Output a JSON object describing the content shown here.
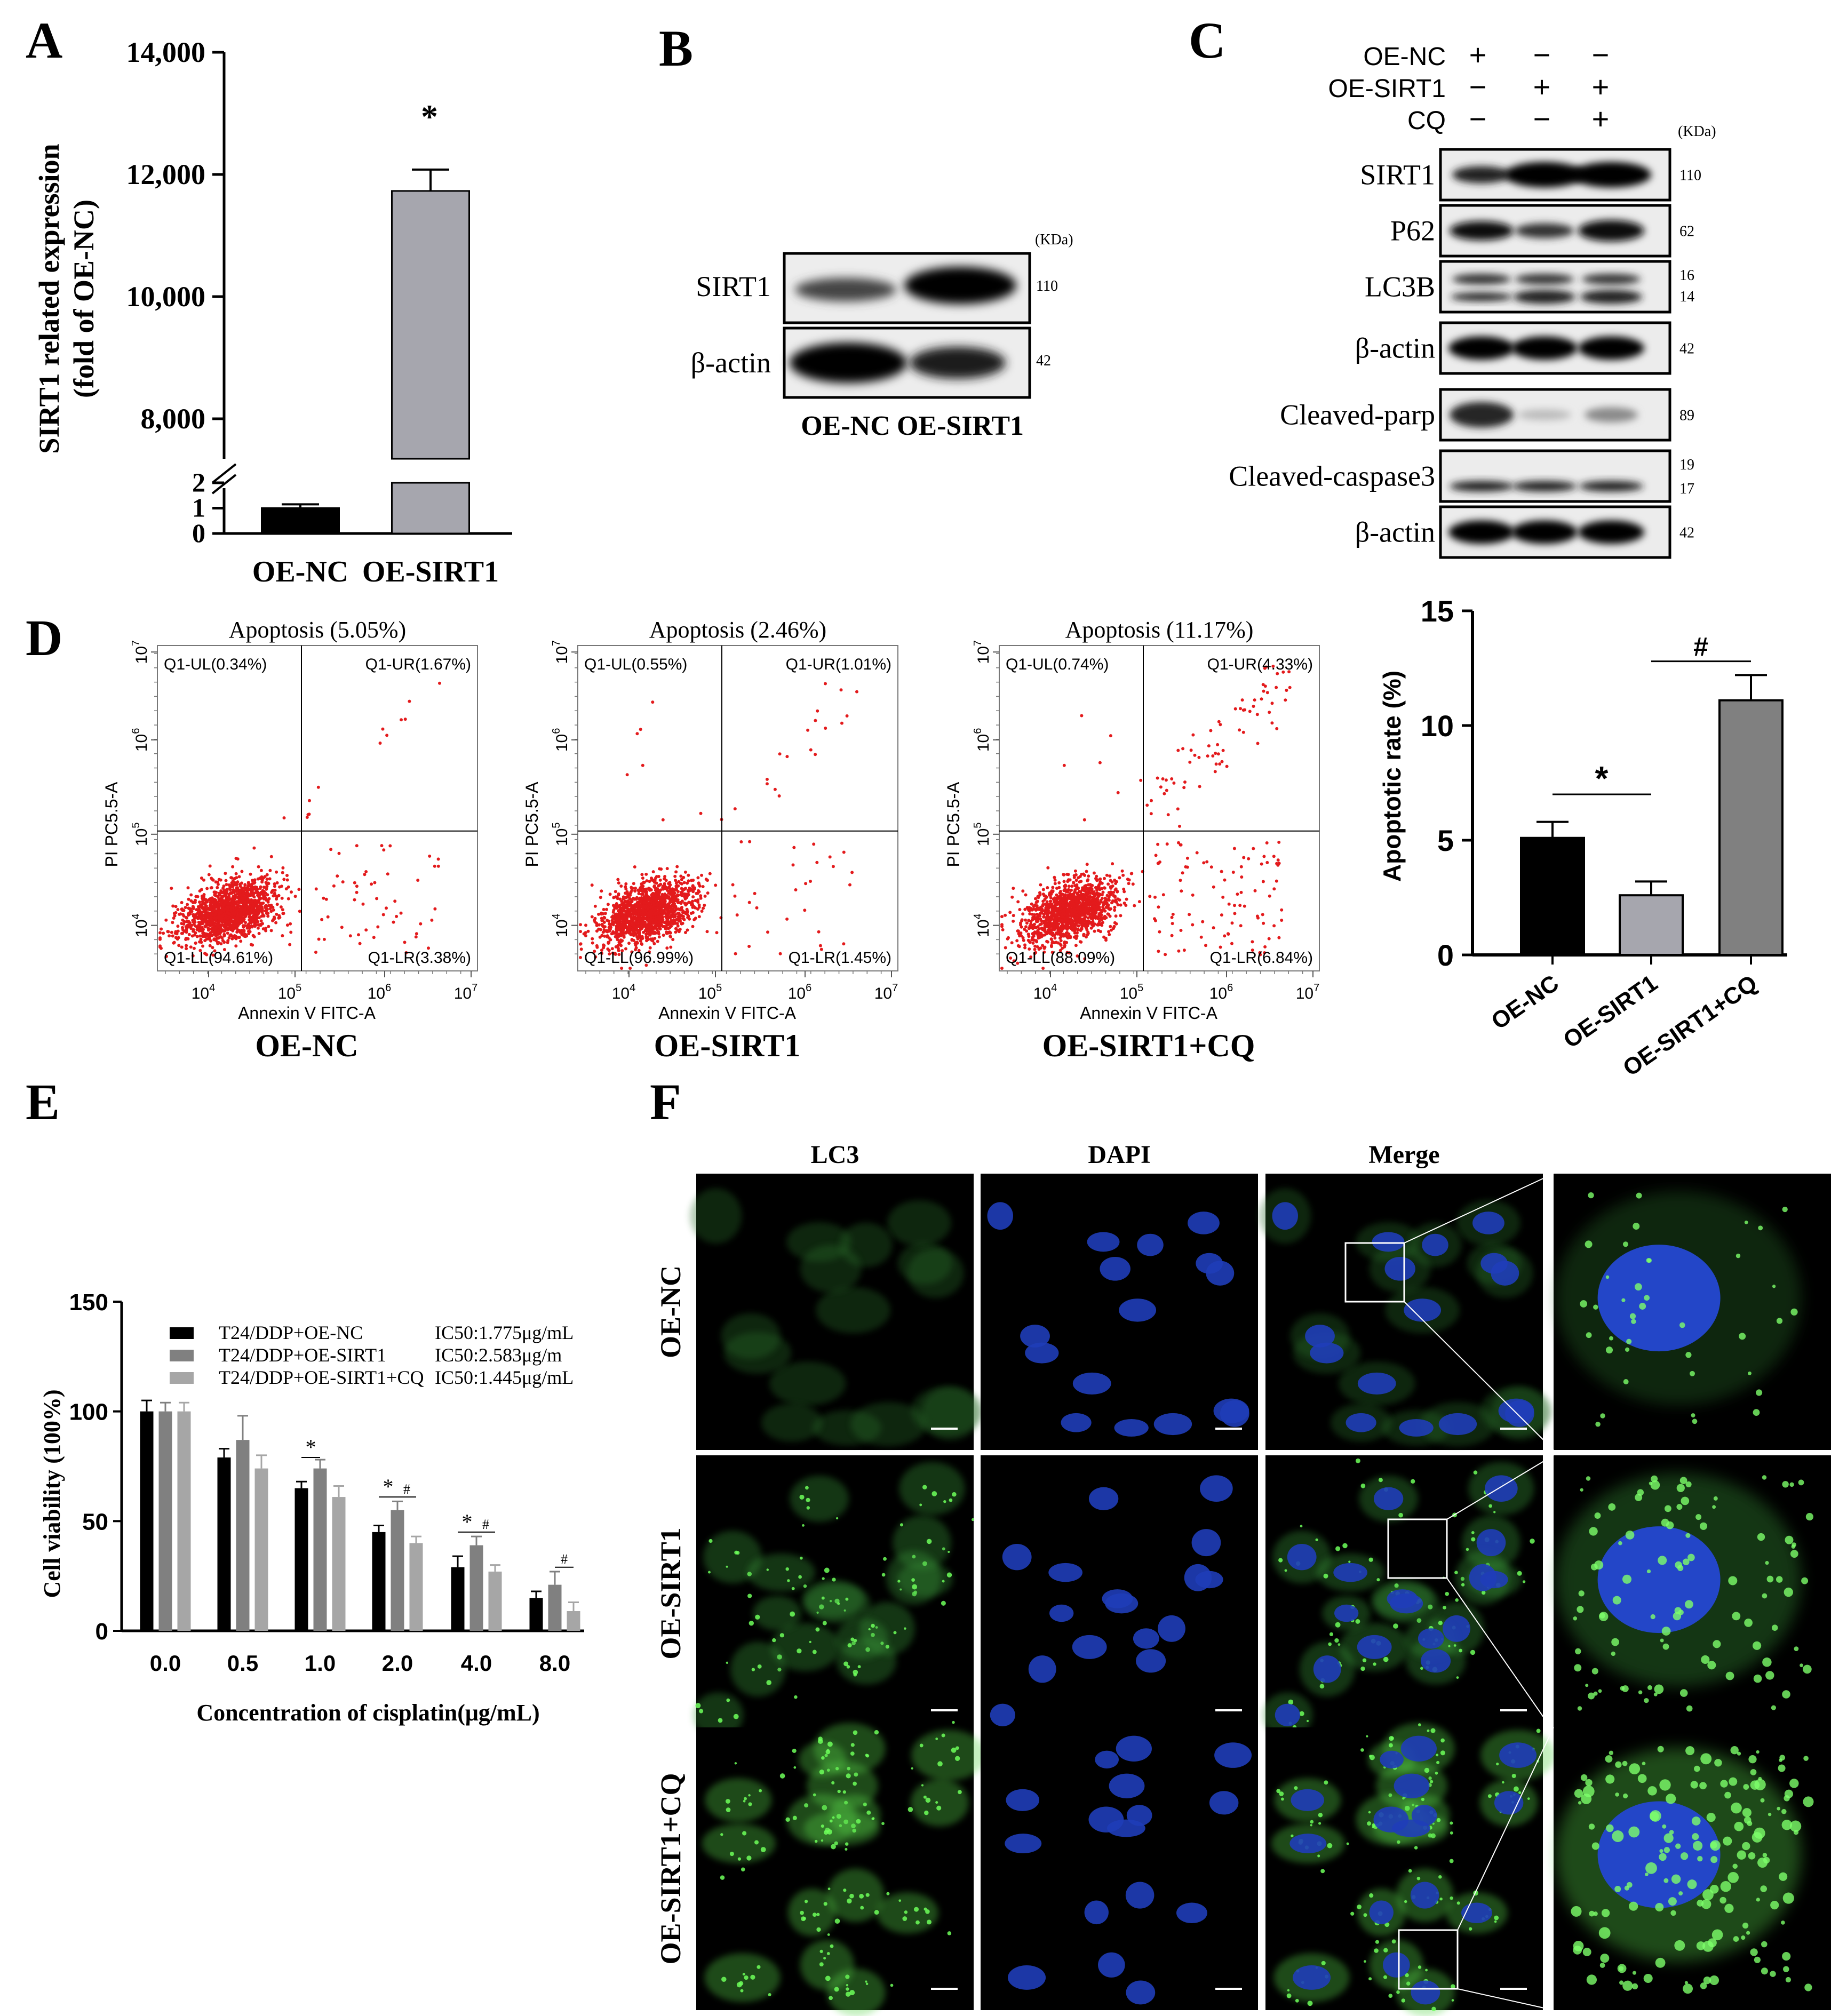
{
  "panels": {
    "A": "A",
    "B": "B",
    "C": "C",
    "D": "D",
    "E": "E",
    "F": "F"
  },
  "panelA": {
    "ylabel_line1": "SIRT1 related expression",
    "ylabel_line2": "(fold of OE-NC)",
    "upper_ticks": [
      "14,000",
      "12,000",
      "10,000",
      "8,000"
    ],
    "lower_ticks": [
      "2",
      "1",
      "0"
    ],
    "star": "*",
    "chart_data": {
      "type": "bar",
      "categories": [
        "OE-NC",
        "OE-SIRT1"
      ],
      "values": [
        1,
        11730
      ],
      "errors": [
        0.15,
        350
      ],
      "ylim_lower": [
        0,
        2
      ],
      "ylim_upper": [
        8000,
        14000
      ],
      "axis_break": true,
      "colors": [
        "#000000",
        "#a6a6ae"
      ]
    }
  },
  "panelB": {
    "unit": "(KDa)",
    "rows": [
      {
        "label": "SIRT1",
        "kda": "110"
      },
      {
        "label": "β-actin",
        "kda": "42"
      }
    ],
    "lanes": [
      "OE-NC",
      "OE-SIRT1"
    ]
  },
  "panelC": {
    "unit": "(KDa)",
    "conditions": [
      {
        "label": "OE-NC",
        "signs": [
          "+",
          "−",
          "−"
        ]
      },
      {
        "label": "OE-SIRT1",
        "signs": [
          "−",
          "+",
          "+"
        ]
      },
      {
        "label": "CQ",
        "signs": [
          "−",
          "−",
          "+"
        ]
      }
    ],
    "rows_top": [
      {
        "label": "SIRT1",
        "kda": "110"
      },
      {
        "label": "P62",
        "kda": "62"
      },
      {
        "label": "LC3B",
        "kda": "16",
        "kda2": "14"
      },
      {
        "label": "β-actin",
        "kda": "42"
      }
    ],
    "rows_bottom": [
      {
        "label": "Cleaved-parp",
        "kda": "89"
      },
      {
        "label": "Cleaved-caspase3",
        "kda": "19",
        "kda2": "17"
      },
      {
        "label": "β-actin",
        "kda": "42"
      }
    ]
  },
  "panelD": {
    "plots": [
      {
        "title": "Apoptosis (5.05%)",
        "ul": "Q1-UL(0.34%)",
        "ur": "Q1-UR(1.67%)",
        "ll": "Q1-LL(94.61%)",
        "lr": "Q1-LR(3.38%)",
        "name": "OE-NC"
      },
      {
        "title": "Apoptosis (2.46%)",
        "ul": "Q1-UL(0.55%)",
        "ur": "Q1-UR(1.01%)",
        "ll": "Q1-LL(96.99%)",
        "lr": "Q1-LR(1.45%)",
        "name": "OE-SIRT1"
      },
      {
        "title": "Apoptosis (11.17%)",
        "ul": "Q1-UL(0.74%)",
        "ur": "Q1-UR(4.33%)",
        "ll": "Q1-LL(88.09%)",
        "lr": "Q1-LR(6.84%)",
        "name": "OE-SIRT1+CQ"
      }
    ],
    "xlabel": "Annexin V FITC-A",
    "ylabel": "PI PC5.5-A",
    "tick_base": "10",
    "tick_exps": [
      "4",
      "5",
      "6",
      "7"
    ],
    "bar": {
      "ylabel": "Apoptotic rate (%)",
      "yticks": [
        "15",
        "10",
        "5",
        "0"
      ],
      "star": "*",
      "hash": "#",
      "chart_data": {
        "type": "bar",
        "categories": [
          "OE-NC",
          "OE-SIRT1",
          "OE-SIRT1+CQ"
        ],
        "values": [
          5.1,
          2.6,
          11.1
        ],
        "errors": [
          0.7,
          0.6,
          1.1
        ],
        "ylim": [
          0,
          15
        ],
        "colors": [
          "#000000",
          "#a6a6ae",
          "#808080"
        ]
      }
    }
  },
  "panelE": {
    "ylabel": "Cell viability (100%)",
    "xlabel": "Concentration of cisplatin(μg/mL)",
    "yticks": [
      "150",
      "100",
      "50",
      "0"
    ],
    "legend": [
      {
        "name": "T24/DDP+OE-NC",
        "ic50": "IC50:1.775μg/mL"
      },
      {
        "name": "T24/DDP+OE-SIRT1",
        "ic50": "IC50:2.583μg/m"
      },
      {
        "name": "T24/DDP+OE-SIRT1+CQ",
        "ic50": "IC50:1.445μg/mL"
      }
    ],
    "star": "*",
    "hash": "#",
    "chart_data": {
      "type": "bar",
      "categories": [
        "0.0",
        "0.5",
        "1.0",
        "2.0",
        "4.0",
        "8.0"
      ],
      "series": [
        {
          "name": "T24/DDP+OE-NC",
          "values": [
            100,
            79,
            65,
            45,
            29,
            15
          ],
          "errors": [
            5,
            4,
            3,
            3,
            5,
            3
          ],
          "color": "#000000"
        },
        {
          "name": "T24/DDP+OE-SIRT1",
          "values": [
            100,
            87,
            74,
            55,
            39,
            21
          ],
          "errors": [
            4,
            11,
            4,
            4,
            4,
            6
          ],
          "color": "#808080"
        },
        {
          "name": "T24/DDP+OE-SIRT1+CQ",
          "values": [
            100,
            74,
            61,
            40,
            27,
            9
          ],
          "errors": [
            4,
            6,
            5,
            3,
            3,
            4
          ],
          "color": "#a6a6a6"
        }
      ],
      "ylim": [
        0,
        150
      ]
    }
  },
  "panelF": {
    "columns": [
      "LC3",
      "DAPI",
      "Merge"
    ],
    "rows": [
      "OE-NC",
      "OE-SIRT1",
      "OE-SIRT1+CQ"
    ]
  }
}
